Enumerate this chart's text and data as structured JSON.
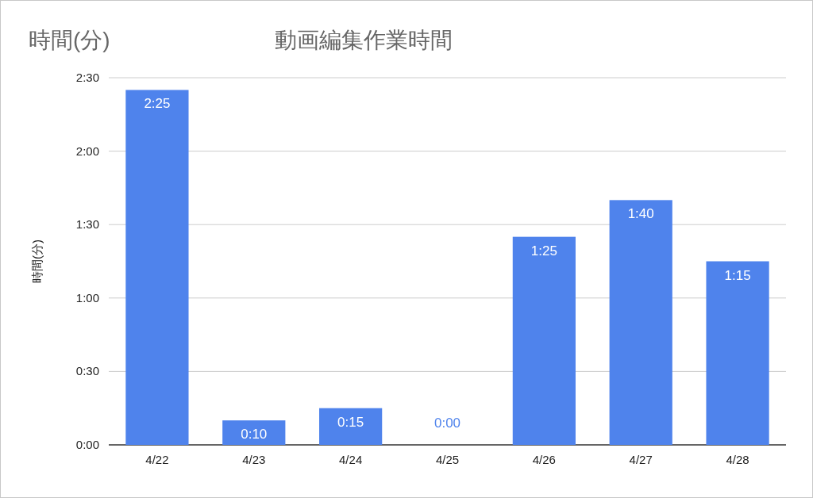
{
  "chart_data": {
    "type": "bar",
    "title": "動画編集作業時間",
    "ylabel": "時間(分)",
    "annotations": [
      "時間(分)"
    ],
    "categories": [
      "4/22",
      "4/23",
      "4/24",
      "4/25",
      "4/26",
      "4/27",
      "4/28"
    ],
    "values": [
      145,
      10,
      15,
      0,
      85,
      100,
      75
    ],
    "value_labels": [
      "2:25",
      "0:10",
      "0:15",
      "0:00",
      "1:25",
      "1:40",
      "1:15"
    ],
    "color": "#4f83ec",
    "ylim": [
      0,
      150
    ],
    "yticks": [
      {
        "value": 0,
        "label": "0:00"
      },
      {
        "value": 30,
        "label": "0:30"
      },
      {
        "value": 60,
        "label": "1:00"
      },
      {
        "value": 90,
        "label": "1:30"
      },
      {
        "value": 120,
        "label": "2:00"
      },
      {
        "value": 150,
        "label": "2:30"
      }
    ],
    "grid": "y"
  }
}
